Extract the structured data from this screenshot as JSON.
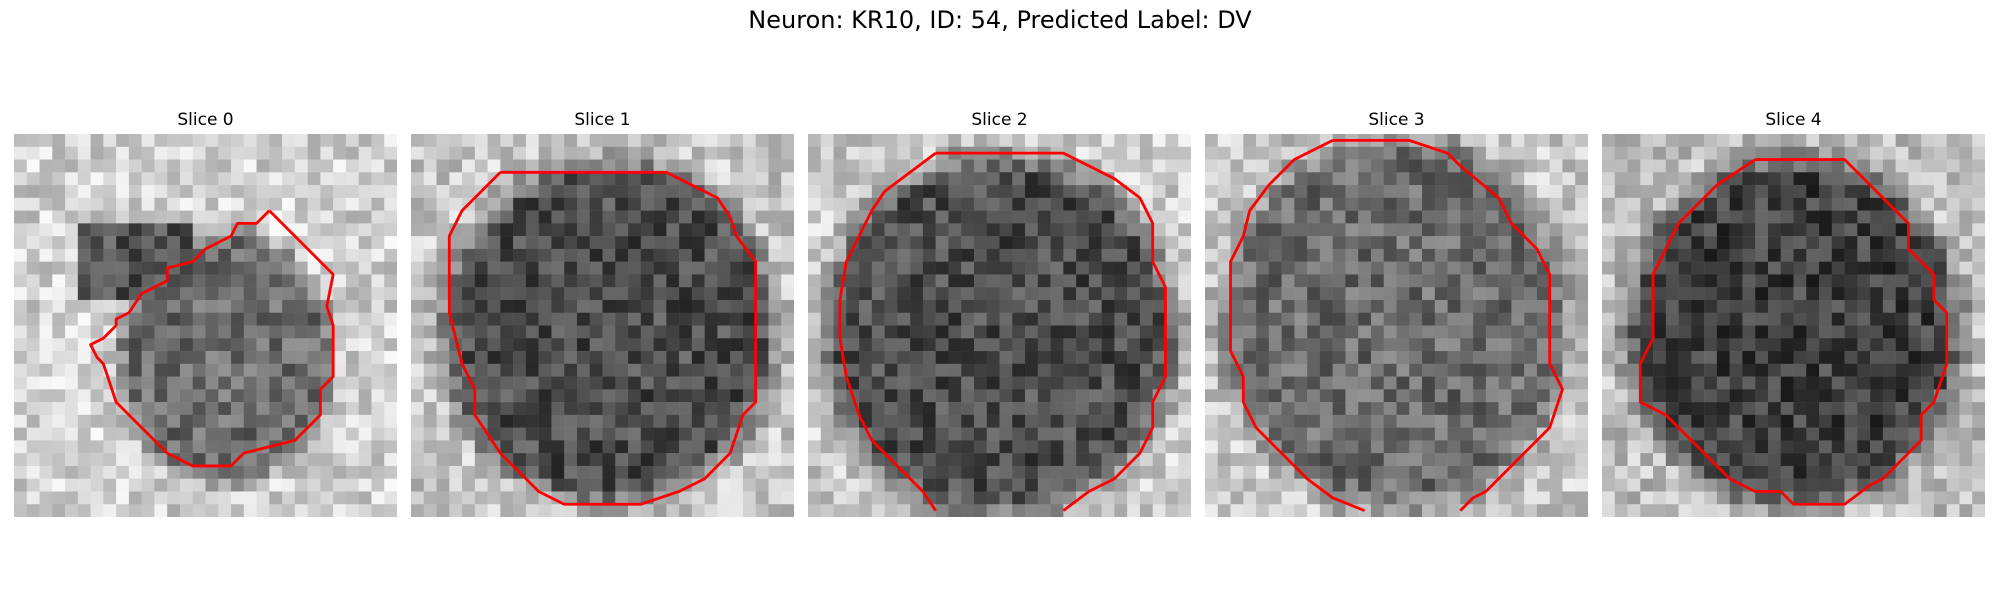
{
  "figure": {
    "suptitle": "Neuron: KR10, ID: 54, Predicted Label: DV"
  },
  "panels": [
    {
      "title": "Slice 0",
      "contour_color": "#ff0000"
    },
    {
      "title": "Slice 1",
      "contour_color": "#ff0000"
    },
    {
      "title": "Slice 2",
      "contour_color": "#ff0000"
    },
    {
      "title": "Slice 3",
      "contour_color": "#ff0000"
    },
    {
      "title": "Slice 4",
      "contour_color": "#ff0000"
    }
  ]
}
